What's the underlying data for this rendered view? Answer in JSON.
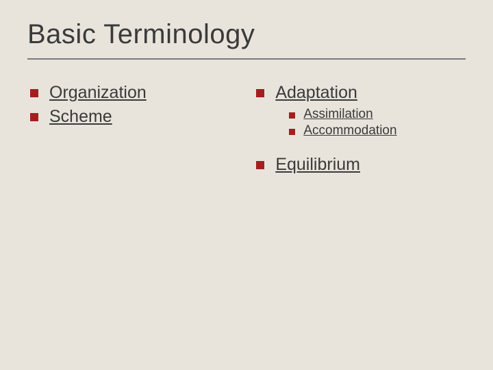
{
  "slide": {
    "title": "Basic Terminology",
    "background_color": "#e8e4dc",
    "title_color": "#3a3a3a",
    "title_fontsize": 40,
    "rule_color": "#7a7a7a",
    "bullet_color": "#a02020",
    "text_color": "#3a3a3a",
    "level1_fontsize": 25,
    "level2_fontsize": 19,
    "left_column": {
      "items": [
        {
          "label": "Organization",
          "level": 1
        },
        {
          "label": "Scheme",
          "level": 1
        }
      ]
    },
    "right_column": {
      "items": [
        {
          "label": "Adaptation",
          "level": 1,
          "children": [
            {
              "label": "Assimilation",
              "level": 2
            },
            {
              "label": "Accommodation",
              "level": 2
            }
          ]
        },
        {
          "label": "Equilibrium",
          "level": 1
        }
      ]
    }
  }
}
